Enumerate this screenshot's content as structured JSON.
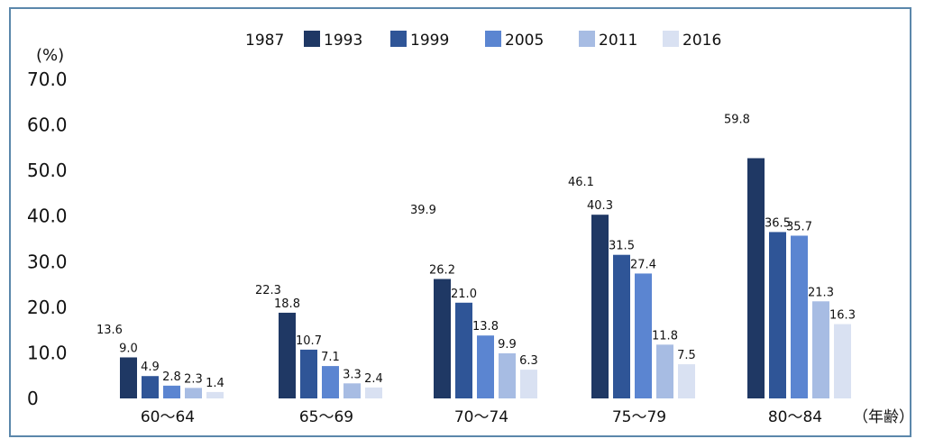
{
  "chart_data": {
    "type": "bar",
    "ylabel": "(%)",
    "xunit": "（年齢）",
    "ylim": [
      0,
      70
    ],
    "yticks": [
      "0",
      "10.0",
      "20.0",
      "30.0",
      "40.0",
      "50.0",
      "60.0",
      "70.0"
    ],
    "categories": [
      "60～64",
      "65～69",
      "70～74",
      "75～79",
      "80～84"
    ],
    "legend_position": "top",
    "series": [
      {
        "name": "1987",
        "color": "#ffffff",
        "values": [
          13.6,
          22.3,
          39.9,
          46.1,
          59.8
        ]
      },
      {
        "name": "1993",
        "color": "#1f3864",
        "values": [
          9.0,
          18.8,
          26.2,
          40.3,
          52.7
        ]
      },
      {
        "name": "1999",
        "color": "#2f5597",
        "values": [
          4.9,
          10.7,
          21.0,
          31.5,
          36.5
        ]
      },
      {
        "name": "2005",
        "color": "#5b85d1",
        "values": [
          2.8,
          7.1,
          13.8,
          27.4,
          35.7
        ]
      },
      {
        "name": "2011",
        "color": "#a7bce3",
        "values": [
          2.3,
          3.3,
          9.9,
          11.8,
          21.3
        ]
      },
      {
        "name": "2016",
        "color": "#d9e1f2",
        "values": [
          1.4,
          2.4,
          6.3,
          7.5,
          16.3
        ]
      }
    ],
    "data_labels": [
      [
        "13.6",
        "9.0",
        "4.9",
        "2.8",
        "2.3",
        "1.4"
      ],
      [
        "22.3",
        "18.8",
        "10.7",
        "7.1",
        "3.3",
        "2.4"
      ],
      [
        "39.9",
        "26.2",
        "21.0",
        "13.8",
        "9.9",
        "6.3"
      ],
      [
        "46.1",
        "40.3",
        "31.5",
        "27.4",
        "11.8",
        "7.5"
      ],
      [
        "59.8",
        "",
        "36.5",
        "35.7",
        "21.3",
        "16.3"
      ]
    ]
  }
}
